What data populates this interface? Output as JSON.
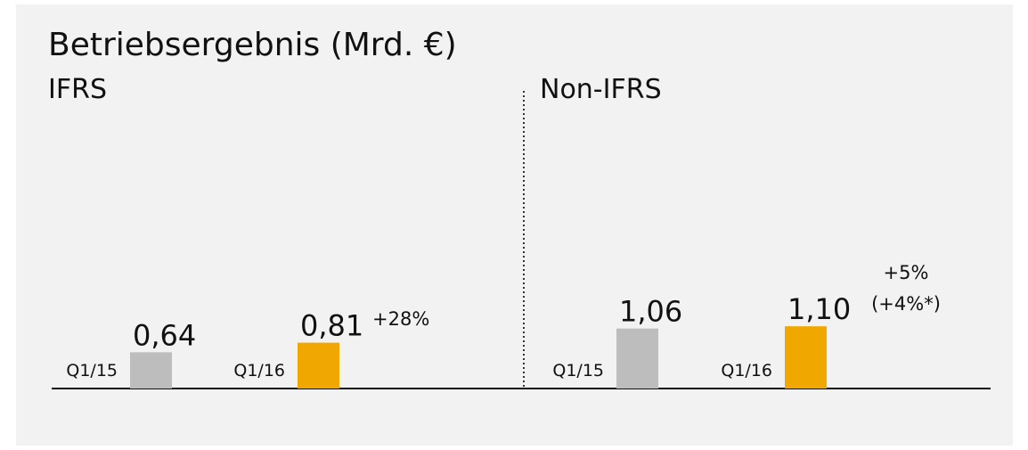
{
  "title": "Betriebsergebnis (Mrd. €)",
  "chart_data": [
    {
      "type": "bar",
      "subtitle": "IFRS",
      "categories": [
        "Q1/15",
        "Q1/16"
      ],
      "values": [
        0.64,
        0.81
      ],
      "value_labels": [
        "0,64",
        "0,81"
      ],
      "colors": [
        "#bdbdbd",
        "#f0a800"
      ],
      "annotations": [
        "+28%"
      ]
    },
    {
      "type": "bar",
      "subtitle": "Non-IFRS",
      "categories": [
        "Q1/15",
        "Q1/16"
      ],
      "values": [
        1.06,
        1.1
      ],
      "value_labels": [
        "1,06",
        "1,10"
      ],
      "colors": [
        "#bdbdbd",
        "#f0a800"
      ],
      "annotations": [
        "+5%",
        "(+4%*)"
      ]
    }
  ]
}
